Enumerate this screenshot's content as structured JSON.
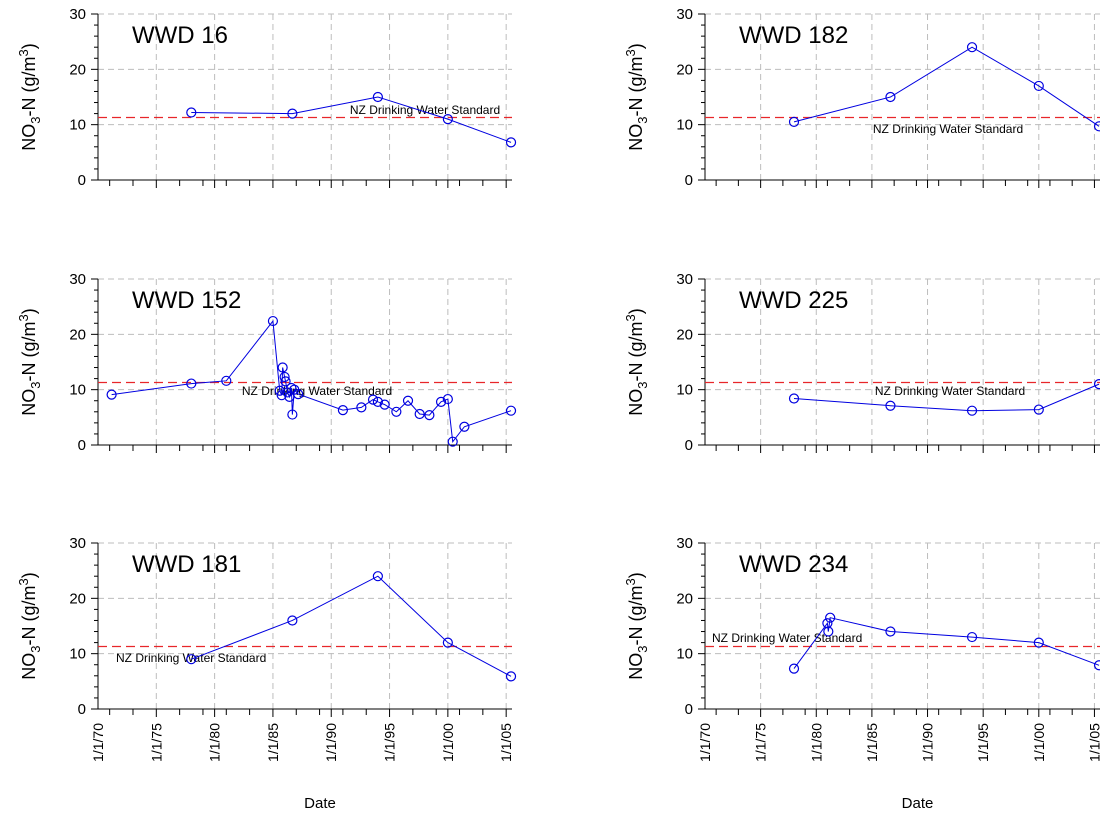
{
  "chart_data": [
    {
      "type": "line",
      "title": "WWD 16",
      "ylabel": "NO3-N (g/m3)",
      "ylim": [
        0,
        30
      ],
      "yticks": [
        "0",
        "10",
        "20",
        "30"
      ],
      "xlabel": "",
      "xlim_years": [
        1970,
        2005.5
      ],
      "xtick_labels": [],
      "grid": true,
      "standard": {
        "label": "NZ Drinking Water Standard",
        "value": 11.3,
        "color": "#e8262a"
      },
      "series": [
        {
          "color": "#0000e0",
          "points": [
            [
              "1978-01",
              12.2
            ],
            [
              "1986-09",
              12.0
            ],
            [
              "1994-01",
              15.0
            ],
            [
              "2000-01",
              11.0
            ],
            [
              "2005-06",
              6.8
            ]
          ]
        }
      ]
    },
    {
      "type": "line",
      "title": "WWD 182",
      "ylabel": "NO3-N (g/m3)",
      "ylim": [
        0,
        30
      ],
      "yticks": [
        "0",
        "10",
        "20",
        "30"
      ],
      "xlabel": "",
      "xlim_years": [
        1970,
        2005.5
      ],
      "xtick_labels": [],
      "grid": true,
      "standard": {
        "label": "NZ Drinking Water Standard",
        "value": 11.3,
        "color": "#e8262a"
      },
      "series": [
        {
          "color": "#0000e0",
          "points": [
            [
              "1978-01",
              10.5
            ],
            [
              "1986-09",
              15.0
            ],
            [
              "1994-01",
              24.0
            ],
            [
              "2000-01",
              17.0
            ],
            [
              "2005-06",
              9.7
            ]
          ]
        }
      ]
    },
    {
      "type": "line",
      "title": "WWD 152",
      "ylabel": "NO3-N (g/m3)",
      "ylim": [
        0,
        30
      ],
      "yticks": [
        "0",
        "10",
        "20",
        "30"
      ],
      "xlabel": "",
      "xlim_years": [
        1970,
        2005.5
      ],
      "xtick_labels": [],
      "grid": true,
      "standard": {
        "label": "NZ Drinking Water Standard",
        "value": 11.3,
        "color": "#e8262a"
      },
      "series": [
        {
          "color": "#0000e0",
          "points": [
            [
              "1971-03",
              9.1
            ],
            [
              "1978-01",
              11.1
            ],
            [
              "1981-01",
              11.6
            ],
            [
              "1985-01",
              22.4
            ],
            [
              "1985-08",
              9.8
            ],
            [
              "1985-10",
              9.0
            ],
            [
              "1985-11",
              14.0
            ],
            [
              "1986-01",
              12.3
            ],
            [
              "1986-02",
              11.5
            ],
            [
              "1986-04",
              9.5
            ],
            [
              "1986-06",
              8.7
            ],
            [
              "1986-08",
              10.3
            ],
            [
              "1986-09",
              5.5
            ],
            [
              "1986-11",
              10.0
            ],
            [
              "1987-03",
              9.2
            ],
            [
              "1991-01",
              6.3
            ],
            [
              "1992-08",
              6.8
            ],
            [
              "1993-08",
              8.2
            ],
            [
              "1994-01",
              7.8
            ],
            [
              "1994-08",
              7.3
            ],
            [
              "1995-08",
              6.0
            ],
            [
              "1996-08",
              8.0
            ],
            [
              "1997-08",
              5.6
            ],
            [
              "1998-06",
              5.4
            ],
            [
              "1999-06",
              7.8
            ],
            [
              "2000-01",
              8.3
            ],
            [
              "2000-06",
              0.6
            ],
            [
              "2001-06",
              3.3
            ],
            [
              "2005-06",
              6.2
            ]
          ]
        }
      ]
    },
    {
      "type": "line",
      "title": "WWD 225",
      "ylabel": "NO3-N (g/m3)",
      "ylim": [
        0,
        30
      ],
      "yticks": [
        "0",
        "10",
        "20",
        "30"
      ],
      "xlabel": "",
      "xlim_years": [
        1970,
        2005.5
      ],
      "xtick_labels": [],
      "grid": true,
      "standard": {
        "label": "NZ Drinking Water Standard",
        "value": 11.3,
        "color": "#e8262a"
      },
      "series": [
        {
          "color": "#0000e0",
          "points": [
            [
              "1978-01",
              8.4
            ],
            [
              "1986-09",
              7.1
            ],
            [
              "1994-01",
              6.2
            ],
            [
              "2000-01",
              6.4
            ],
            [
              "2005-06",
              11.0
            ]
          ]
        }
      ]
    },
    {
      "type": "line",
      "title": "WWD 181",
      "ylabel": "NO3-N (g/m3)",
      "ylim": [
        0,
        30
      ],
      "yticks": [
        "0",
        "10",
        "20",
        "30"
      ],
      "xlabel": "Date",
      "xlim_years": [
        1970,
        2005.5
      ],
      "xtick_labels": [
        "1/1/70",
        "1/1/75",
        "1/1/80",
        "1/1/85",
        "1/1/90",
        "1/1/95",
        "1/1/00",
        "1/1/05"
      ],
      "grid": true,
      "standard": {
        "label": "NZ Drinking Water Standard",
        "value": 11.3,
        "color": "#e8262a"
      },
      "series": [
        {
          "color": "#0000e0",
          "points": [
            [
              "1978-01",
              9.0
            ],
            [
              "1986-09",
              16.0
            ],
            [
              "1994-01",
              24.0
            ],
            [
              "2000-01",
              12.0
            ],
            [
              "2005-06",
              5.9
            ]
          ]
        }
      ]
    },
    {
      "type": "line",
      "title": "WWD 234",
      "ylabel": "NO3-N (g/m3)",
      "ylim": [
        0,
        30
      ],
      "yticks": [
        "0",
        "10",
        "20",
        "30"
      ],
      "xlabel": "Date",
      "xlim_years": [
        1970,
        2005.5
      ],
      "xtick_labels": [
        "1/1/70",
        "1/1/75",
        "1/1/80",
        "1/1/85",
        "1/1/90",
        "1/1/95",
        "1/1/00",
        "1/1/05"
      ],
      "grid": true,
      "standard": {
        "label": "NZ Drinking Water Standard",
        "value": 11.3,
        "color": "#e8262a"
      },
      "series": [
        {
          "color": "#0000e0",
          "points": [
            [
              "1978-01",
              7.3
            ],
            [
              "1981-01",
              15.5
            ],
            [
              "1981-02",
              14.0
            ],
            [
              "1981-04",
              16.5
            ],
            [
              "1986-09",
              14.0
            ],
            [
              "1994-01",
              13.0
            ],
            [
              "2000-01",
              12.0
            ],
            [
              "2005-06",
              7.9
            ]
          ]
        }
      ]
    }
  ]
}
